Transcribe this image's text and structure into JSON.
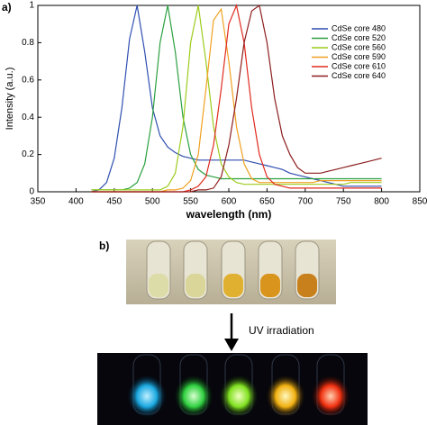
{
  "panel_a_label": "a)",
  "chart_data": {
    "type": "line",
    "xlabel": "wavelength (nm)",
    "ylabel": "Intensity (a.u.)",
    "xlim": [
      350,
      850
    ],
    "xticks": [
      350,
      400,
      450,
      500,
      550,
      600,
      650,
      700,
      750,
      800,
      850
    ],
    "ylim": [
      0,
      1
    ],
    "yticks": [
      0,
      0.2,
      0.4,
      0.6,
      0.8,
      1
    ],
    "legend": "upper right",
    "x": [
      420,
      430,
      440,
      450,
      460,
      470,
      480,
      490,
      500,
      510,
      520,
      530,
      540,
      550,
      560,
      570,
      580,
      590,
      600,
      610,
      620,
      630,
      640,
      650,
      660,
      670,
      680,
      690,
      700,
      710,
      720,
      730,
      740,
      750,
      760,
      770,
      780,
      790,
      800
    ],
    "series": [
      {
        "name": "CdSe core 480",
        "color": "#2f4fb0",
        "values": [
          0,
          0.01,
          0.05,
          0.18,
          0.45,
          0.82,
          1,
          0.75,
          0.45,
          0.3,
          0.24,
          0.21,
          0.19,
          0.18,
          0.17,
          0.17,
          0.17,
          0.17,
          0.17,
          0.17,
          0.17,
          0.16,
          0.15,
          0.14,
          0.13,
          0.12,
          0.1,
          0.09,
          0.08,
          0.07,
          0.06,
          0.05,
          0.04,
          0.03,
          0.03,
          0.03,
          0.03,
          0.03,
          0.03
        ]
      },
      {
        "name": "CdSe core 520",
        "color": "#2ca040",
        "values": [
          0.01,
          0.01,
          0.01,
          0.01,
          0.01,
          0.02,
          0.05,
          0.15,
          0.4,
          0.8,
          1,
          0.75,
          0.4,
          0.2,
          0.12,
          0.09,
          0.08,
          0.07,
          0.07,
          0.07,
          0.07,
          0.07,
          0.07,
          0.07,
          0.07,
          0.07,
          0.07,
          0.07,
          0.07,
          0.07,
          0.07,
          0.07,
          0.07,
          0.07,
          0.07,
          0.07,
          0.07,
          0.07,
          0.07
        ]
      },
      {
        "name": "CdSe core 560",
        "color": "#9ccc1c",
        "values": [
          0.01,
          0.01,
          0.01,
          0.01,
          0.01,
          0.01,
          0.01,
          0.01,
          0.01,
          0.01,
          0.03,
          0.1,
          0.35,
          0.8,
          1,
          0.7,
          0.35,
          0.15,
          0.08,
          0.05,
          0.04,
          0.04,
          0.04,
          0.04,
          0.04,
          0.04,
          0.04,
          0.04,
          0.04,
          0.04,
          0.04,
          0.04,
          0.04,
          0.04,
          0.05,
          0.05,
          0.05,
          0.05,
          0.05
        ]
      },
      {
        "name": "CdSe core 590",
        "color": "#f0a020",
        "values": [
          0,
          0,
          0,
          0,
          0,
          0,
          0,
          0,
          0,
          0,
          0.01,
          0.01,
          0.02,
          0.06,
          0.2,
          0.55,
          0.92,
          0.98,
          0.7,
          0.35,
          0.15,
          0.07,
          0.05,
          0.05,
          0.05,
          0.05,
          0.05,
          0.05,
          0.05,
          0.05,
          0.06,
          0.06,
          0.06,
          0.06,
          0.06,
          0.06,
          0.06,
          0.06,
          0.06
        ]
      },
      {
        "name": "CdSe core 610",
        "color": "#e02a1e",
        "values": [
          0,
          0,
          0,
          0,
          0,
          0,
          0,
          0,
          0,
          0,
          0,
          0,
          0,
          0.01,
          0.03,
          0.08,
          0.25,
          0.55,
          0.9,
          1,
          0.8,
          0.45,
          0.2,
          0.08,
          0.04,
          0.03,
          0.02,
          0.02,
          0.02,
          0.02,
          0.02,
          0.02,
          0.02,
          0.02,
          0.02,
          0.02,
          0.02,
          0.02,
          0.02
        ]
      },
      {
        "name": "CdSe core 640",
        "color": "#8e1e1e",
        "values": [
          0,
          0,
          0,
          0,
          0,
          0,
          0,
          0,
          0,
          0,
          0,
          0,
          0,
          0,
          0.01,
          0.01,
          0.02,
          0.08,
          0.25,
          0.5,
          0.8,
          0.97,
          1,
          0.8,
          0.5,
          0.3,
          0.2,
          0.13,
          0.1,
          0.1,
          0.1,
          0.11,
          0.12,
          0.13,
          0.14,
          0.15,
          0.16,
          0.17,
          0.18
        ]
      }
    ]
  },
  "panel_b_label": "b)",
  "uv_label": "UV irradiation"
}
